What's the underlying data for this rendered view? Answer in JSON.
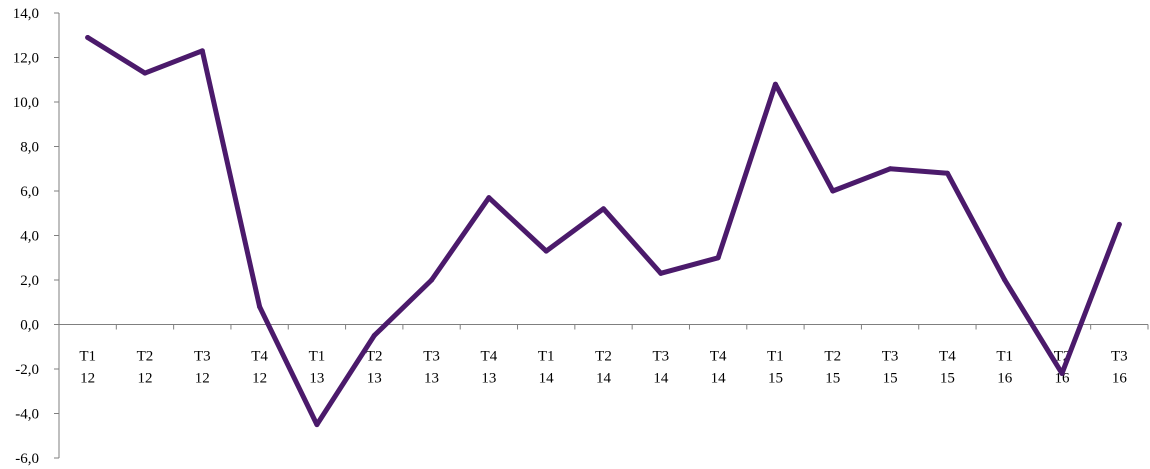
{
  "chart_data": {
    "type": "line",
    "title": "",
    "xlabel": "",
    "ylabel": "",
    "ylim": [
      -6,
      14
    ],
    "yticks": [
      {
        "value": 14,
        "label": "14,0"
      },
      {
        "value": 12,
        "label": "12,0"
      },
      {
        "value": 10,
        "label": "10,0"
      },
      {
        "value": 8,
        "label": "8,0"
      },
      {
        "value": 6,
        "label": "6,0"
      },
      {
        "value": 4,
        "label": "4,0"
      },
      {
        "value": 2,
        "label": "2,0"
      },
      {
        "value": 0,
        "label": "0,0"
      },
      {
        "value": -2,
        "label": "-2,0"
      },
      {
        "value": -4,
        "label": "-4,0"
      },
      {
        "value": -6,
        "label": "-6,0"
      }
    ],
    "categories": [
      {
        "top": "T1",
        "bottom": "12"
      },
      {
        "top": "T2",
        "bottom": "12"
      },
      {
        "top": "T3",
        "bottom": "12"
      },
      {
        "top": "T4",
        "bottom": "12"
      },
      {
        "top": "T1",
        "bottom": "13"
      },
      {
        "top": "T2",
        "bottom": "13"
      },
      {
        "top": "T3",
        "bottom": "13"
      },
      {
        "top": "T4",
        "bottom": "13"
      },
      {
        "top": "T1",
        "bottom": "14"
      },
      {
        "top": "T2",
        "bottom": "14"
      },
      {
        "top": "T3",
        "bottom": "14"
      },
      {
        "top": "T4",
        "bottom": "14"
      },
      {
        "top": "T1",
        "bottom": "15"
      },
      {
        "top": "T2",
        "bottom": "15"
      },
      {
        "top": "T3",
        "bottom": "15"
      },
      {
        "top": "T4",
        "bottom": "15"
      },
      {
        "top": "T1",
        "bottom": "16"
      },
      {
        "top": "T2",
        "bottom": "16"
      },
      {
        "top": "T3",
        "bottom": "16"
      }
    ],
    "series": [
      {
        "color": "#4b1a6b",
        "values": [
          12.9,
          11.3,
          12.3,
          0.8,
          -4.5,
          -0.5,
          2.0,
          5.7,
          3.3,
          5.2,
          2.3,
          3.0,
          10.8,
          6.0,
          7.0,
          6.8,
          2.0,
          -2.2,
          4.5
        ]
      }
    ],
    "grid": false,
    "legend": "none"
  }
}
